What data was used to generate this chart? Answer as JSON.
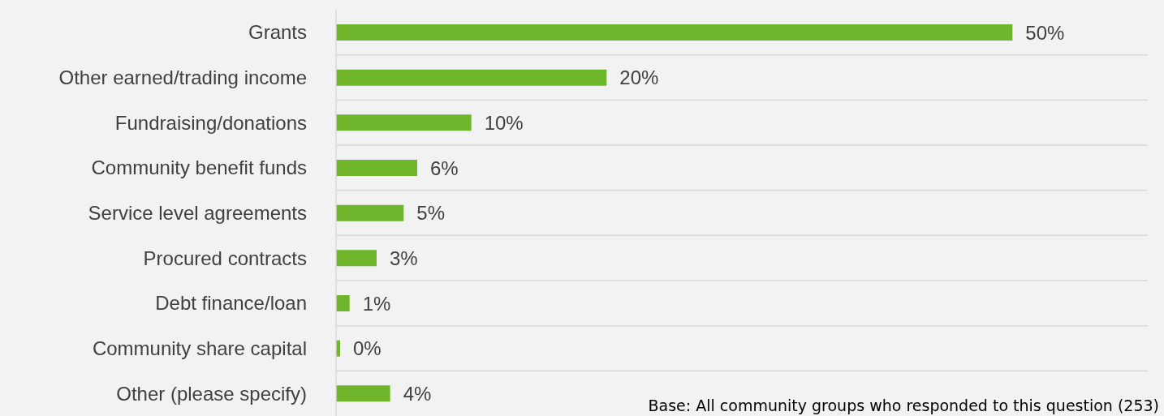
{
  "chart_data": {
    "type": "bar",
    "orientation": "horizontal",
    "categories": [
      "Grants",
      "Other earned/trading income",
      "Fundraising/donations",
      "Community benefit funds",
      "Service level agreements",
      "Procured contracts",
      "Debt finance/loan",
      "Community share capital",
      "Other (please specify)"
    ],
    "values": [
      50,
      20,
      10,
      6,
      5,
      3,
      1,
      0.3,
      4
    ],
    "value_labels": [
      "50%",
      "20%",
      "10%",
      "6%",
      "5%",
      "3%",
      "1%",
      "0%",
      "4%"
    ],
    "color": "#70b62c",
    "grid": "y",
    "annotations": [
      "Base: All community groups who responded to this question (253)"
    ]
  }
}
